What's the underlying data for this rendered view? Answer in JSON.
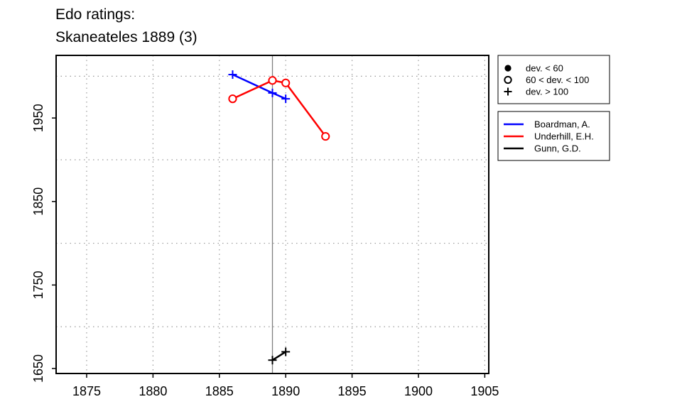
{
  "title_lines": [
    "Edo ratings:",
    "Skaneateles 1889 (3)"
  ],
  "chart_data": {
    "type": "line",
    "title": "Edo ratings:\nSkaneateles 1889 (3)",
    "xlabel": "",
    "ylabel": "",
    "xlim": [
      1872.7,
      1905.3
    ],
    "ylim": [
      1644,
      2025
    ],
    "xticks": [
      1875,
      1880,
      1885,
      1890,
      1895,
      1900,
      1905
    ],
    "yticks": [
      1650,
      1750,
      1850,
      1950
    ],
    "grid_x": [
      1875,
      1880,
      1885,
      1890,
      1895,
      1900,
      1905
    ],
    "grid_y": [
      1700,
      1800,
      1900,
      2000
    ],
    "grid": "dotted",
    "reference_line_x": 1889,
    "series": [
      {
        "name": "Boardman, A.",
        "color": "#0000ff",
        "points": [
          {
            "x": 1886,
            "y": 2002,
            "marker": "plus"
          },
          {
            "x": 1889,
            "y": 1980,
            "marker": "plus"
          },
          {
            "x": 1890,
            "y": 1973,
            "marker": "plus"
          }
        ]
      },
      {
        "name": "Underhill, E.H.",
        "color": "#ff0000",
        "points": [
          {
            "x": 1886,
            "y": 1973,
            "marker": "open-circle"
          },
          {
            "x": 1889,
            "y": 1995,
            "marker": "open-circle"
          },
          {
            "x": 1890,
            "y": 1992,
            "marker": "open-circle"
          },
          {
            "x": 1893,
            "y": 1928,
            "marker": "open-circle"
          }
        ]
      },
      {
        "name": "Gunn, G.D.",
        "color": "#000000",
        "points": [
          {
            "x": 1889,
            "y": 1660,
            "marker": "plus"
          },
          {
            "x": 1890,
            "y": 1670,
            "marker": "plus"
          }
        ]
      }
    ],
    "marker_legend": [
      {
        "marker": "filled-circle",
        "label": "dev. < 60"
      },
      {
        "marker": "open-circle",
        "label": "60 < dev. < 100"
      },
      {
        "marker": "plus",
        "label": "dev. > 100"
      }
    ],
    "legend_position": "right"
  }
}
